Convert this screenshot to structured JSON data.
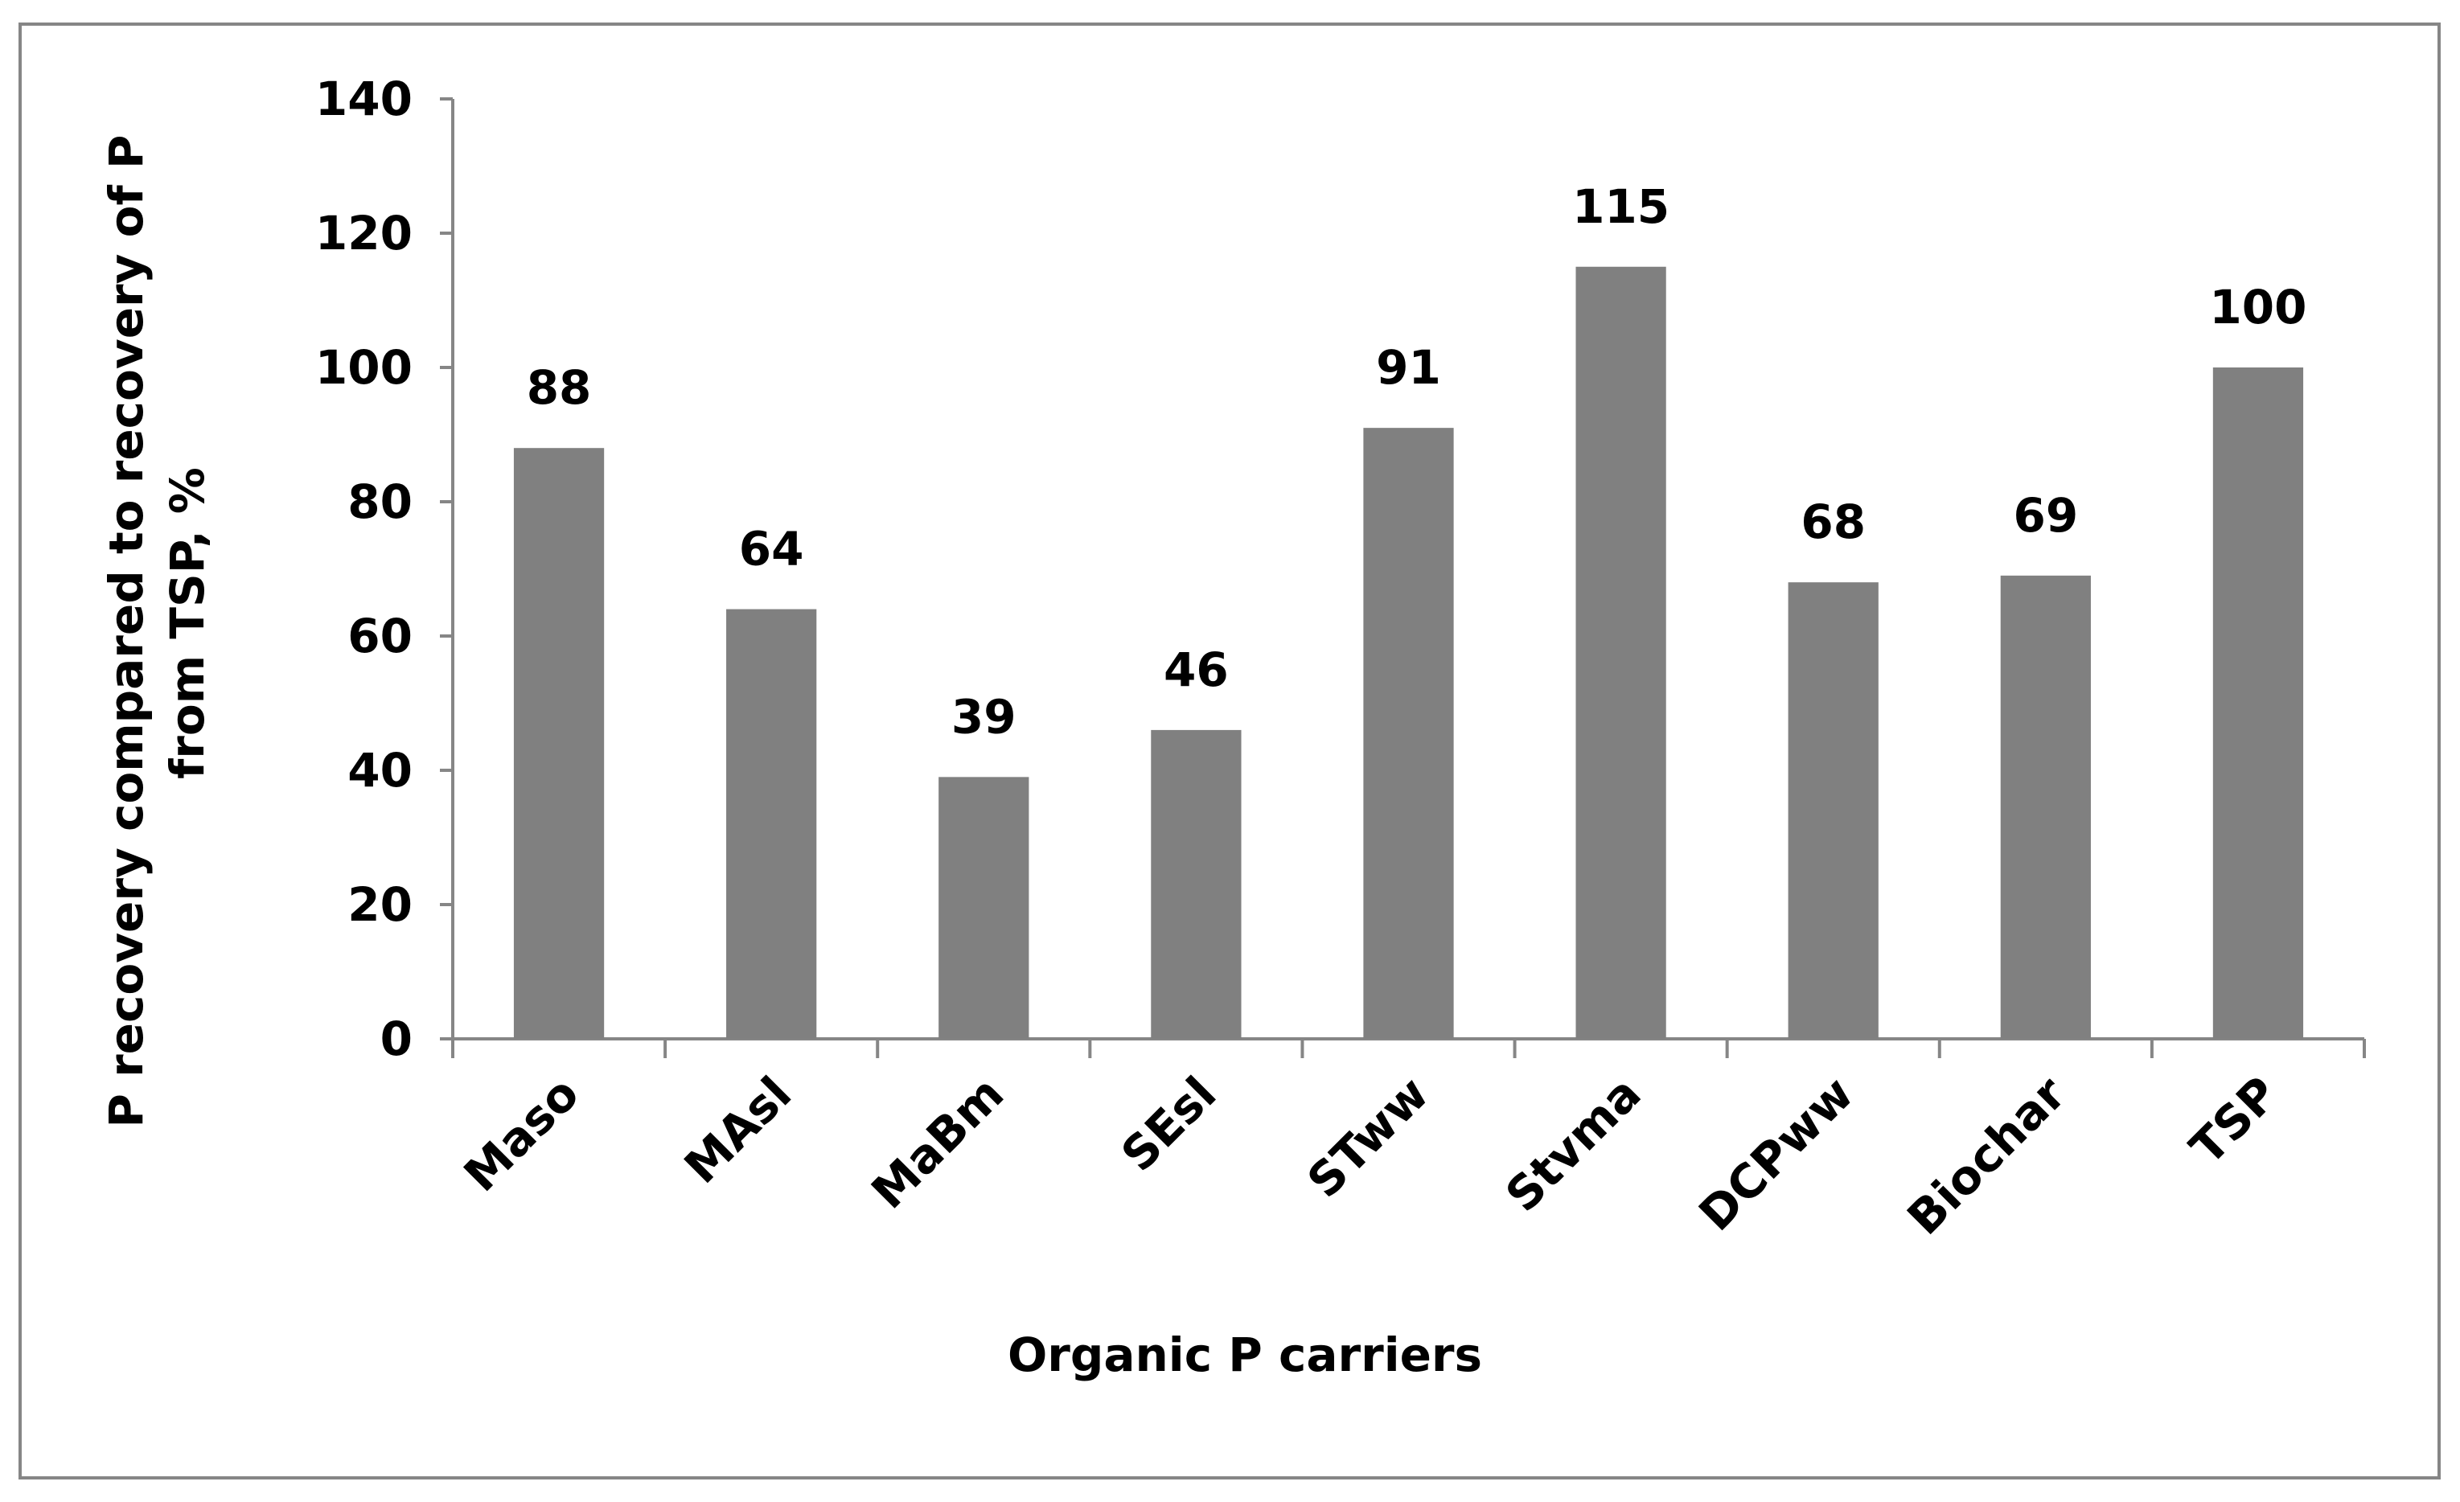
{
  "chart_data": {
    "type": "bar",
    "categories": [
      "Maso",
      "MAsl",
      "MaBm",
      "SEsl",
      "STww",
      "Stvma",
      "DCPww",
      "Biochar",
      "TSP"
    ],
    "values": [
      88,
      64,
      39,
      46,
      91,
      115,
      68,
      69,
      100
    ],
    "data_labels": [
      "88",
      "64",
      "39",
      "46",
      "91",
      "115",
      "68",
      "69",
      "100"
    ],
    "title": "",
    "xlabel": "Organic P carriers",
    "ylabel_lines": [
      "P recovery compared to recovery of P",
      "from TSP, %"
    ],
    "ylim": [
      0,
      140
    ],
    "yticks": [
      0,
      20,
      40,
      60,
      80,
      100,
      120,
      140
    ],
    "ytick_labels": [
      "0",
      "20",
      "40",
      "60",
      "80",
      "100",
      "120",
      "140"
    ],
    "grid": false,
    "legend": "none",
    "bar_color": "#808080",
    "axis_color": "#868686",
    "frame_color": "#868686"
  }
}
